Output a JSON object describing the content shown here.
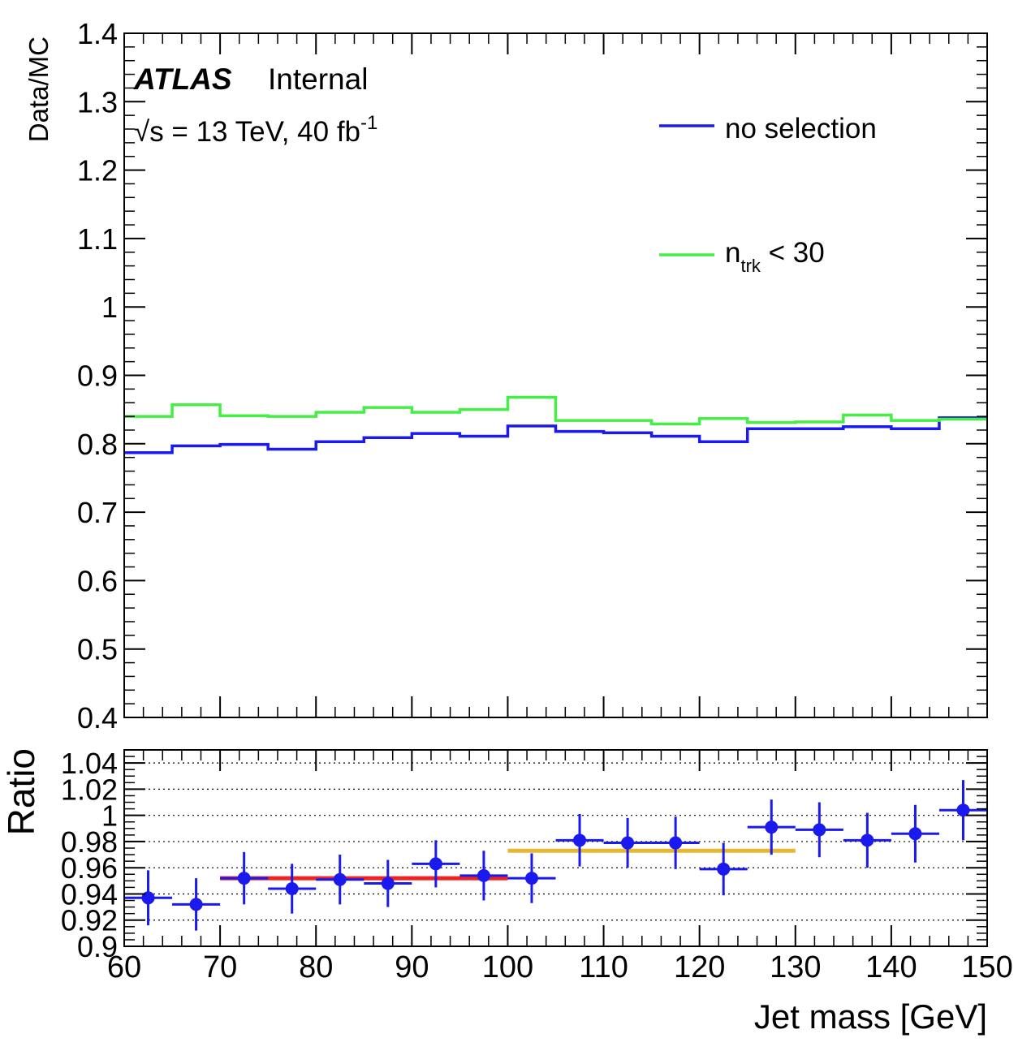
{
  "labels": {
    "experiment": "ATLAS",
    "status": "Internal",
    "energy_prefix": "√s = 13 TeV, 40 fb",
    "energy_exp": "-1",
    "legend_blue": "no selection",
    "legend_green_base": "n",
    "legend_green_sub": "trk",
    "legend_green_rest": " < 30"
  },
  "colors": {
    "blue_series": "#1a1aee",
    "green_series": "#44ee44",
    "points": "#1a1aee",
    "fit_low": "#ee2222",
    "fit_high": "#e6b830"
  },
  "chart_data": [
    {
      "type": "line",
      "style": "step",
      "xlim": [
        60,
        150
      ],
      "ylim": [
        0.4,
        1.4
      ],
      "ylabel": "Data/MC",
      "y_ticks": [
        "0.4",
        "0.5",
        "0.6",
        "0.7",
        "0.8",
        "0.9",
        "1",
        "1.1",
        "1.2",
        "1.3",
        "1.4"
      ],
      "bin_edges": [
        60,
        65,
        70,
        75,
        80,
        85,
        90,
        95,
        100,
        105,
        110,
        115,
        120,
        125,
        130,
        135,
        140,
        145,
        150
      ],
      "legend_position": "top-right",
      "series": [
        {
          "name": "no selection",
          "color": "#1a1aee",
          "values": [
            0.787,
            0.797,
            0.799,
            0.792,
            0.803,
            0.809,
            0.815,
            0.811,
            0.826,
            0.818,
            0.816,
            0.811,
            0.803,
            0.822,
            0.822,
            0.825,
            0.822,
            0.838
          ]
        },
        {
          "name": "n_trk < 30",
          "color": "#44ee44",
          "values": [
            0.84,
            0.857,
            0.841,
            0.84,
            0.846,
            0.853,
            0.846,
            0.85,
            0.868,
            0.834,
            0.834,
            0.829,
            0.837,
            0.831,
            0.832,
            0.842,
            0.834,
            0.836
          ]
        }
      ]
    },
    {
      "type": "scatter",
      "xlim": [
        60,
        150
      ],
      "ylim": [
        0.9,
        1.05
      ],
      "ylabel": "Ratio",
      "xlabel": "Jet mass [GeV]",
      "x_ticks": [
        "60",
        "70",
        "80",
        "90",
        "100",
        "110",
        "120",
        "130",
        "140",
        "150"
      ],
      "y_ticks": [
        "0.9",
        "0.92",
        "0.94",
        "0.96",
        "0.98",
        "1",
        "1.02",
        "1.04"
      ],
      "grid": true,
      "points": [
        {
          "x": 62.5,
          "y": 0.937,
          "err": 0.021
        },
        {
          "x": 67.5,
          "y": 0.932,
          "err": 0.02
        },
        {
          "x": 72.5,
          "y": 0.952,
          "err": 0.02
        },
        {
          "x": 77.5,
          "y": 0.944,
          "err": 0.019
        },
        {
          "x": 82.5,
          "y": 0.951,
          "err": 0.019
        },
        {
          "x": 87.5,
          "y": 0.948,
          "err": 0.018
        },
        {
          "x": 92.5,
          "y": 0.963,
          "err": 0.018
        },
        {
          "x": 97.5,
          "y": 0.954,
          "err": 0.019
        },
        {
          "x": 102.5,
          "y": 0.952,
          "err": 0.019
        },
        {
          "x": 107.5,
          "y": 0.981,
          "err": 0.02
        },
        {
          "x": 112.5,
          "y": 0.979,
          "err": 0.019
        },
        {
          "x": 117.5,
          "y": 0.979,
          "err": 0.02
        },
        {
          "x": 122.5,
          "y": 0.959,
          "err": 0.02
        },
        {
          "x": 127.5,
          "y": 0.991,
          "err": 0.021
        },
        {
          "x": 132.5,
          "y": 0.989,
          "err": 0.021
        },
        {
          "x": 137.5,
          "y": 0.981,
          "err": 0.021
        },
        {
          "x": 142.5,
          "y": 0.986,
          "err": 0.022
        },
        {
          "x": 147.5,
          "y": 1.004,
          "err": 0.023
        }
      ],
      "fits": [
        {
          "x": [
            70,
            100
          ],
          "y": 0.952,
          "color": "#ee2222"
        },
        {
          "x": [
            100,
            130
          ],
          "y": 0.973,
          "color": "#e6b830"
        }
      ]
    }
  ]
}
